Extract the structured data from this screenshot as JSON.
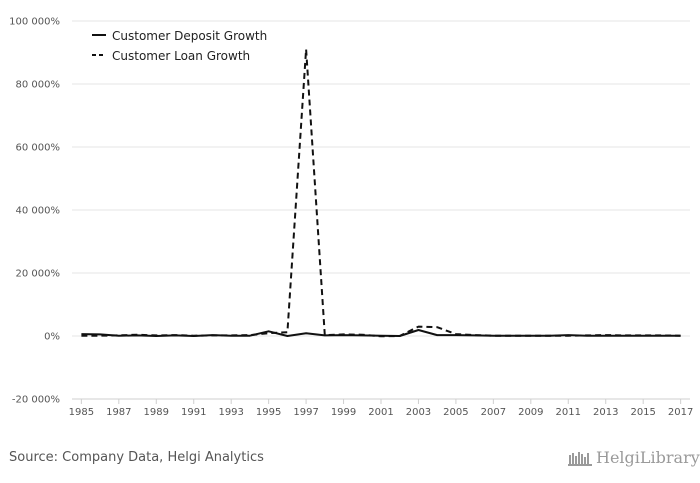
{
  "chart_data": {
    "type": "line",
    "title": "",
    "xlabel": "",
    "ylabel": "",
    "ylim": [
      -20000,
      100000
    ],
    "yticks": [
      -20000,
      0,
      20000,
      40000,
      60000,
      80000,
      100000
    ],
    "ytick_labels": [
      "-20 000%",
      "0%",
      "20 000%",
      "40 000%",
      "60 000%",
      "80 000%",
      "100 000%"
    ],
    "xlim": [
      1984.5,
      2017.5
    ],
    "xticks": [
      "1985",
      "1987",
      "1989",
      "1991",
      "1993",
      "1995",
      "1997",
      "1999",
      "2001",
      "2003",
      "2005",
      "2007",
      "2009",
      "2011",
      "2013",
      "2015",
      "2017"
    ],
    "x": [
      1985,
      1986,
      1987,
      1988,
      1989,
      1990,
      1991,
      1992,
      1993,
      1994,
      1995,
      1996,
      1997,
      1998,
      1999,
      2000,
      2001,
      2002,
      2003,
      2004,
      2005,
      2006,
      2007,
      2008,
      2009,
      2010,
      2011,
      2012,
      2013,
      2014,
      2015,
      2016,
      2017
    ],
    "series": [
      {
        "name": "Customer Deposit Growth",
        "style": "solid",
        "values": [
          600,
          500,
          100,
          200,
          0,
          200,
          0,
          300,
          100,
          100,
          1500,
          0,
          900,
          200,
          300,
          200,
          100,
          0,
          1900,
          300,
          300,
          200,
          100,
          100,
          100,
          100,
          300,
          100,
          100,
          100,
          100,
          100,
          100
        ]
      },
      {
        "name": "Customer Loan Growth",
        "style": "dashed",
        "values": [
          100,
          100,
          200,
          400,
          200,
          300,
          100,
          200,
          200,
          300,
          900,
          1200,
          91000,
          300,
          500,
          400,
          -100,
          0,
          3000,
          2800,
          600,
          300,
          100,
          100,
          100,
          100,
          100,
          200,
          300,
          200,
          200,
          200,
          100
        ]
      }
    ]
  },
  "legend": [
    {
      "label": "Customer Deposit Growth"
    },
    {
      "label": "Customer Loan Growth"
    }
  ],
  "footer": {
    "source": "Source: Company Data, Helgi Analytics",
    "brand": "HelgiLibrary"
  }
}
